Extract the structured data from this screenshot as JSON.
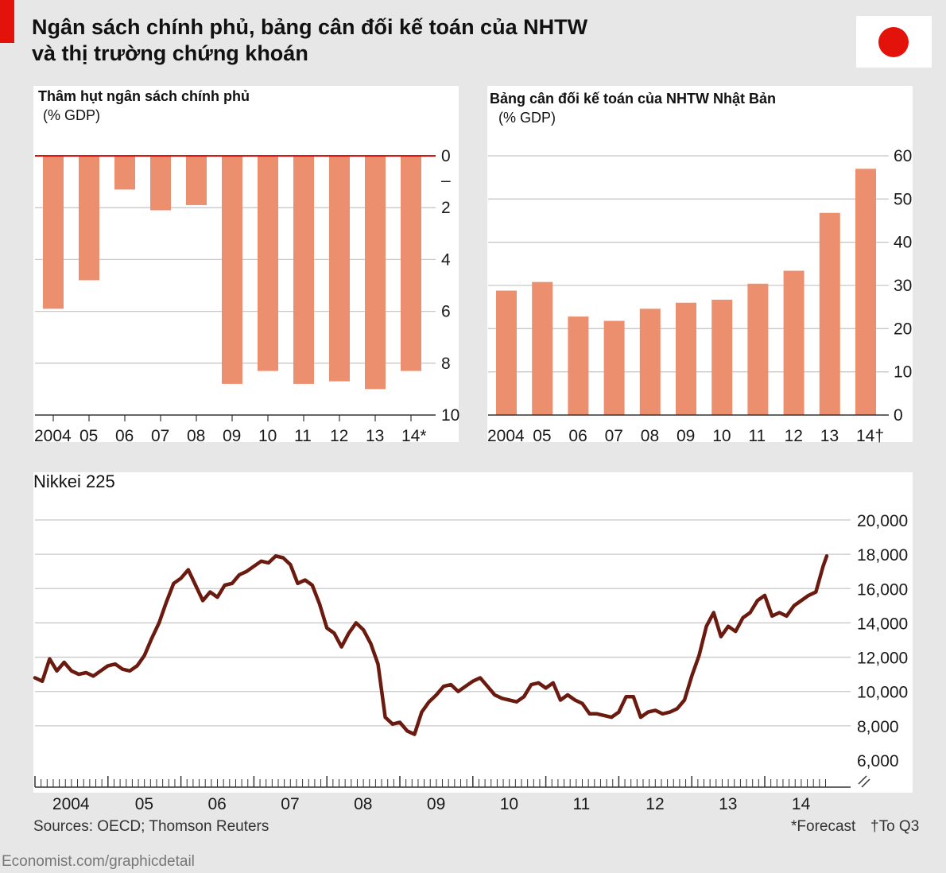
{
  "header": {
    "title_line1": "Ngân sách chính phủ, bảng cân đối kế toán của NHTW",
    "title_line2": "và thị trường chứng khoán",
    "flag": "japan-flag-icon",
    "accent_color": "#e3120b"
  },
  "footer": {
    "sources": "Sources: OECD; Thomson Reuters",
    "forecast_note": "*Forecast",
    "q3_note": "†To Q3",
    "credit": "Economist.com/graphicdetail"
  },
  "chart_data": [
    {
      "type": "bar",
      "title": "Thâm hụt ngân sách chính phủ",
      "ylabel": "(% GDP)",
      "categories": [
        "2004",
        "05",
        "06",
        "07",
        "08",
        "09",
        "10",
        "11",
        "12",
        "13",
        "14*"
      ],
      "values": [
        5.9,
        4.8,
        1.3,
        2.1,
        1.9,
        8.8,
        8.3,
        8.8,
        8.7,
        9.0,
        8.3
      ],
      "ylim": [
        0,
        10
      ],
      "yticks": [
        "0",
        "2",
        "4",
        "6",
        "8",
        "10"
      ],
      "inverted": true,
      "bar_color": "#ec8f6f",
      "zero_line_color": "#e3120b"
    },
    {
      "type": "bar",
      "title": "Bảng cân đối kế toán của NHTW Nhật Bản",
      "ylabel": "(% GDP)",
      "categories": [
        "2004",
        "05",
        "06",
        "07",
        "08",
        "09",
        "10",
        "11",
        "12",
        "13",
        "14†"
      ],
      "values": [
        28.8,
        30.8,
        22.8,
        21.8,
        24.6,
        26.0,
        26.7,
        30.4,
        33.4,
        46.8,
        57.0
      ],
      "ylim": [
        0,
        60
      ],
      "yticks": [
        "0",
        "10",
        "20",
        "30",
        "40",
        "50",
        "60"
      ],
      "bar_color": "#ec8f6f"
    },
    {
      "type": "line",
      "title": "Nikkei 225",
      "ylim": [
        6000,
        20000
      ],
      "yticks": [
        "6,000",
        "8,000",
        "10,000",
        "12,000",
        "14,000",
        "16,000",
        "18,000",
        "20,000"
      ],
      "xticks": [
        "2004",
        "05",
        "06",
        "07",
        "08",
        "09",
        "10",
        "11",
        "12",
        "13",
        "14"
      ],
      "x_start": 2004.0,
      "x_end": 2014.85,
      "line_color": "#6b1a0f",
      "series": [
        {
          "name": "Nikkei 225",
          "x": [
            2004.0,
            2004.1,
            2004.2,
            2004.3,
            2004.4,
            2004.5,
            2004.6,
            2004.7,
            2004.8,
            2004.9,
            2005.0,
            2005.1,
            2005.2,
            2005.3,
            2005.4,
            2005.5,
            2005.6,
            2005.7,
            2005.8,
            2005.9,
            2006.0,
            2006.1,
            2006.2,
            2006.3,
            2006.4,
            2006.5,
            2006.6,
            2006.7,
            2006.8,
            2006.9,
            2007.0,
            2007.1,
            2007.2,
            2007.3,
            2007.4,
            2007.5,
            2007.6,
            2007.7,
            2007.8,
            2007.9,
            2008.0,
            2008.1,
            2008.2,
            2008.3,
            2008.4,
            2008.5,
            2008.6,
            2008.7,
            2008.8,
            2008.9,
            2009.0,
            2009.1,
            2009.2,
            2009.3,
            2009.4,
            2009.5,
            2009.6,
            2009.7,
            2009.8,
            2009.9,
            2010.0,
            2010.1,
            2010.2,
            2010.3,
            2010.4,
            2010.5,
            2010.6,
            2010.7,
            2010.8,
            2010.9,
            2011.0,
            2011.1,
            2011.2,
            2011.3,
            2011.4,
            2011.5,
            2011.6,
            2011.7,
            2011.8,
            2011.9,
            2012.0,
            2012.1,
            2012.2,
            2012.3,
            2012.4,
            2012.5,
            2012.6,
            2012.7,
            2012.8,
            2012.9,
            2013.0,
            2013.1,
            2013.2,
            2013.3,
            2013.4,
            2013.5,
            2013.6,
            2013.7,
            2013.8,
            2013.9,
            2014.0,
            2014.1,
            2014.2,
            2014.3,
            2014.4,
            2014.5,
            2014.6,
            2014.7,
            2014.8,
            2014.85
          ],
          "values": [
            10800,
            10600,
            11900,
            11200,
            11700,
            11200,
            11000,
            11100,
            10900,
            11200,
            11500,
            11600,
            11300,
            11200,
            11500,
            12100,
            13100,
            14000,
            15200,
            16300,
            16600,
            17100,
            16200,
            15300,
            15800,
            15500,
            16200,
            16300,
            16800,
            17000,
            17300,
            17600,
            17500,
            17900,
            17800,
            17400,
            16300,
            16500,
            16200,
            15100,
            13700,
            13400,
            12600,
            13400,
            14000,
            13600,
            12800,
            11600,
            8500,
            8100,
            8200,
            7700,
            7500,
            8800,
            9400,
            9800,
            10300,
            10400,
            10000,
            10300,
            10600,
            10800,
            10300,
            9800,
            9600,
            9500,
            9400,
            9700,
            10400,
            10500,
            10200,
            10500,
            9500,
            9800,
            9500,
            9300,
            8700,
            8700,
            8600,
            8500,
            8800,
            9700,
            9700,
            8500,
            8800,
            8900,
            8700,
            8800,
            9000,
            9500,
            10900,
            12100,
            13800,
            14600,
            13200,
            13800,
            13500,
            14300,
            14600,
            15300,
            15600,
            14400,
            14600,
            14400,
            15000,
            15300,
            15600,
            15800,
            17300,
            17900
          ]
        }
      ]
    }
  ]
}
